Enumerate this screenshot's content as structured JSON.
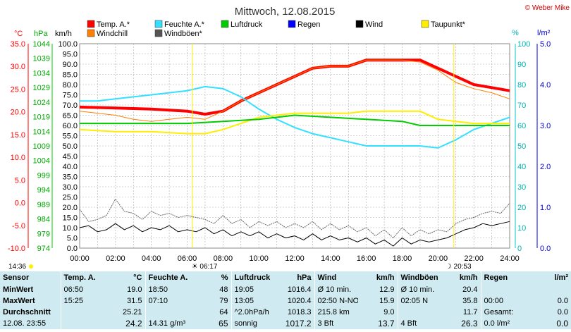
{
  "title": "Mittwoch, 12.08.2015",
  "copyright": "© Weber Mike",
  "units": {
    "celsius": "°C",
    "hpa": "hPa",
    "kmh": "km/h",
    "percent": "%",
    "lm2": "l/m²"
  },
  "legend": [
    {
      "label": "Temp. A.*",
      "color": "#ff0000"
    },
    {
      "label": "Feuchte A.*",
      "color": "#33e0ff"
    },
    {
      "label": "Luftdruck",
      "color": "#00cc00"
    },
    {
      "label": "Regen",
      "color": "#0000ff"
    },
    {
      "label": "Wind",
      "color": "#000000"
    },
    {
      "label": "Taupunkt*",
      "color": "#ffee00"
    },
    {
      "label": "Windchill",
      "color": "#ff7f00"
    },
    {
      "label": "Windböen*",
      "color": "#555555"
    }
  ],
  "chart_data": {
    "type": "line",
    "x_ticks": [
      "00:00",
      "02:00",
      "04:00",
      "06:00",
      "08:00",
      "10:00",
      "12:00",
      "14:00",
      "16:00",
      "18:00",
      "20:00",
      "22:00",
      "24:00"
    ],
    "axes": {
      "temp": {
        "min": -10,
        "max": 35,
        "ticks": [
          "35.0",
          "30.0",
          "25.0",
          "20.0",
          "15.0",
          "10.0",
          "5.0",
          "0.0",
          "-5.0",
          "-10.0"
        ],
        "color": "#ff0000"
      },
      "pressure": {
        "min": 974,
        "max": 1044,
        "ticks": [
          "1044",
          "1039",
          "1034",
          "1029",
          "1024",
          "1019",
          "1014",
          "1009",
          "1004",
          "999",
          "994",
          "989",
          "984",
          "979",
          "974"
        ],
        "color": "#00cc00"
      },
      "wind": {
        "min": 0,
        "max": 100,
        "ticks": [
          "100.0",
          "95.0",
          "90.0",
          "85.0",
          "80.0",
          "75.0",
          "70.0",
          "65.0",
          "60.0",
          "55.0",
          "50.0",
          "45.0",
          "40.0",
          "35.0",
          "30.0",
          "25.0",
          "20.0",
          "15.0",
          "10.0",
          "5.0",
          "0.0"
        ],
        "color": "#000000"
      },
      "humidity": {
        "min": 0,
        "max": 100,
        "ticks": [
          "100",
          "90",
          "80",
          "70",
          "60",
          "50",
          "40",
          "30",
          "20",
          "10",
          "0"
        ],
        "color": "#00c8c8"
      },
      "rain": {
        "min": 0,
        "max": 5,
        "ticks": [
          "5.0",
          "4.0",
          "3.0",
          "2.0",
          "1.0",
          "0.0"
        ],
        "color": "#0000cc"
      }
    },
    "series": [
      {
        "name": "Temp. A.*",
        "axis": "wind",
        "color": "#ff0000",
        "width": 4,
        "points": [
          [
            0,
            69
          ],
          [
            2,
            68.5
          ],
          [
            4,
            68
          ],
          [
            6,
            67
          ],
          [
            7,
            65.5
          ],
          [
            8,
            67
          ],
          [
            9,
            72
          ],
          [
            10,
            76
          ],
          [
            11,
            80
          ],
          [
            12,
            84
          ],
          [
            13,
            88
          ],
          [
            14,
            89
          ],
          [
            15,
            89
          ],
          [
            16,
            92
          ],
          [
            17,
            92
          ],
          [
            18,
            92
          ],
          [
            19,
            92
          ],
          [
            20,
            88
          ],
          [
            21,
            84
          ],
          [
            22,
            80
          ],
          [
            23,
            78.5
          ],
          [
            24,
            77
          ]
        ]
      },
      {
        "name": "Windchill",
        "axis": "wind",
        "color": "#ff7f00",
        "width": 1,
        "points": [
          [
            0,
            67
          ],
          [
            1,
            66
          ],
          [
            2,
            65
          ],
          [
            3,
            63
          ],
          [
            4,
            62
          ],
          [
            5,
            63
          ],
          [
            6,
            64
          ],
          [
            7,
            63
          ],
          [
            8,
            67
          ],
          [
            9,
            72
          ],
          [
            10,
            76
          ],
          [
            11,
            80
          ],
          [
            12,
            84
          ],
          [
            13,
            88
          ],
          [
            14,
            89
          ],
          [
            15,
            89
          ],
          [
            16,
            92
          ],
          [
            17,
            92
          ],
          [
            18,
            92
          ],
          [
            19,
            91
          ],
          [
            20,
            87
          ],
          [
            21,
            81
          ],
          [
            22,
            78
          ],
          [
            23,
            76
          ],
          [
            24,
            73
          ]
        ]
      },
      {
        "name": "Feuchte A.*",
        "axis": "humidity",
        "color": "#33e0ff",
        "width": 2,
        "points": [
          [
            0,
            72
          ],
          [
            1,
            72
          ],
          [
            2,
            73
          ],
          [
            3,
            74
          ],
          [
            4,
            75
          ],
          [
            5,
            76
          ],
          [
            6,
            77
          ],
          [
            7,
            79
          ],
          [
            8,
            78
          ],
          [
            9,
            74
          ],
          [
            10,
            68
          ],
          [
            11,
            63
          ],
          [
            12,
            59
          ],
          [
            13,
            56
          ],
          [
            14,
            54
          ],
          [
            15,
            52
          ],
          [
            16,
            50
          ],
          [
            17,
            50
          ],
          [
            18,
            50
          ],
          [
            19,
            50
          ],
          [
            20,
            49
          ],
          [
            21,
            53
          ],
          [
            22,
            58
          ],
          [
            23,
            61
          ],
          [
            24,
            64
          ]
        ]
      },
      {
        "name": "Taupunkt*",
        "axis": "wind",
        "color": "#ffee00",
        "width": 2,
        "points": [
          [
            0,
            58
          ],
          [
            2,
            57
          ],
          [
            4,
            57
          ],
          [
            6,
            56
          ],
          [
            7,
            56
          ],
          [
            8,
            58
          ],
          [
            9,
            61
          ],
          [
            10,
            64
          ],
          [
            11,
            65
          ],
          [
            12,
            66
          ],
          [
            13,
            66
          ],
          [
            14,
            66
          ],
          [
            15,
            66
          ],
          [
            16,
            67
          ],
          [
            17,
            67
          ],
          [
            18,
            67
          ],
          [
            19,
            67
          ],
          [
            20,
            63
          ],
          [
            21,
            62
          ],
          [
            22,
            61
          ],
          [
            23,
            61
          ],
          [
            24,
            61
          ]
        ]
      },
      {
        "name": "Luftdruck",
        "axis": "wind",
        "color": "#00cc00",
        "width": 2,
        "points": [
          [
            0,
            61
          ],
          [
            2,
            61
          ],
          [
            4,
            61
          ],
          [
            6,
            61
          ],
          [
            8,
            62
          ],
          [
            10,
            63
          ],
          [
            12,
            65
          ],
          [
            14,
            64
          ],
          [
            16,
            63
          ],
          [
            18,
            62
          ],
          [
            19,
            60
          ],
          [
            20,
            60
          ],
          [
            22,
            60
          ],
          [
            24,
            60
          ]
        ]
      },
      {
        "name": "Windböen*",
        "axis": "wind",
        "color": "#666666",
        "width": 1,
        "dashed": true,
        "points": [
          [
            0,
            19
          ],
          [
            0.5,
            13
          ],
          [
            1,
            14
          ],
          [
            1.5,
            16
          ],
          [
            2,
            24
          ],
          [
            2.5,
            18
          ],
          [
            3,
            17
          ],
          [
            3.5,
            14
          ],
          [
            4,
            18
          ],
          [
            4.5,
            16
          ],
          [
            5,
            17
          ],
          [
            5.5,
            15
          ],
          [
            6,
            16
          ],
          [
            6.5,
            15
          ],
          [
            7,
            14
          ],
          [
            7.5,
            12
          ],
          [
            8,
            16
          ],
          [
            8.5,
            12
          ],
          [
            9,
            14
          ],
          [
            9.5,
            10
          ],
          [
            10,
            13
          ],
          [
            10.5,
            11
          ],
          [
            11,
            13
          ],
          [
            11.5,
            10
          ],
          [
            12,
            12
          ],
          [
            12.5,
            10
          ],
          [
            13,
            13
          ],
          [
            13.5,
            9
          ],
          [
            14,
            12
          ],
          [
            14.5,
            9
          ],
          [
            15,
            11
          ],
          [
            15.5,
            8
          ],
          [
            16,
            10
          ],
          [
            16.5,
            6
          ],
          [
            17,
            9
          ],
          [
            17.5,
            5
          ],
          [
            18,
            10
          ],
          [
            18.5,
            6
          ],
          [
            19,
            9
          ],
          [
            19.5,
            7
          ],
          [
            20,
            9
          ],
          [
            20.5,
            8
          ],
          [
            21,
            12
          ],
          [
            21.5,
            14
          ],
          [
            22,
            15
          ],
          [
            22.5,
            17
          ],
          [
            23,
            18
          ],
          [
            23.5,
            17
          ],
          [
            24,
            22
          ]
        ]
      },
      {
        "name": "Wind",
        "axis": "wind",
        "color": "#000000",
        "width": 1,
        "points": [
          [
            0,
            10
          ],
          [
            0.5,
            11
          ],
          [
            1,
            8
          ],
          [
            1.5,
            9
          ],
          [
            2,
            12
          ],
          [
            2.5,
            9
          ],
          [
            3,
            11
          ],
          [
            3.5,
            8
          ],
          [
            4,
            10
          ],
          [
            4.5,
            9
          ],
          [
            5,
            11
          ],
          [
            5.5,
            8
          ],
          [
            6,
            9
          ],
          [
            6.5,
            8
          ],
          [
            7,
            10
          ],
          [
            7.5,
            7
          ],
          [
            8,
            9
          ],
          [
            8.5,
            6
          ],
          [
            9,
            8
          ],
          [
            9.5,
            6
          ],
          [
            10,
            8
          ],
          [
            10.5,
            5
          ],
          [
            11,
            7
          ],
          [
            11.5,
            5
          ],
          [
            12,
            6
          ],
          [
            12.5,
            4
          ],
          [
            13,
            7
          ],
          [
            13.5,
            4
          ],
          [
            14,
            6
          ],
          [
            14.5,
            4
          ],
          [
            15,
            5
          ],
          [
            15.5,
            3
          ],
          [
            16,
            5
          ],
          [
            16.5,
            2
          ],
          [
            17,
            4
          ],
          [
            17.5,
            1
          ],
          [
            18,
            5
          ],
          [
            18.5,
            2
          ],
          [
            19,
            4
          ],
          [
            19.5,
            3
          ],
          [
            20,
            4
          ],
          [
            20.5,
            5
          ],
          [
            21,
            7
          ],
          [
            21.5,
            9
          ],
          [
            22,
            10
          ],
          [
            22.5,
            12
          ],
          [
            23,
            11
          ],
          [
            23.5,
            12
          ],
          [
            24,
            13
          ]
        ]
      }
    ],
    "markers": {
      "sunrise": "06:17",
      "sunset": "20:53",
      "now": "14:36"
    }
  },
  "table": {
    "headers": [
      "Sensor",
      "Temp. A.",
      "°C",
      "Feuchte A.",
      "%",
      "Luftdruck",
      "hPa",
      "Wind",
      "km/h",
      "Windböen",
      "km/h",
      "Regen",
      "l/m²"
    ],
    "rows": [
      [
        "MinWert",
        "06:50",
        "19.0",
        "18:50",
        "48",
        "19:05",
        "1016.4",
        "Ø 10 min.",
        "12.9",
        "Ø 10 min.",
        "20.4",
        "",
        ""
      ],
      [
        "MaxWert",
        "15:25",
        "31.5",
        "07:10",
        "79",
        "13:05",
        "1020.4",
        "02:50 N-NO",
        "15.9",
        "02:05 N",
        "35.8",
        "00:00",
        "0.0"
      ],
      [
        "Durchschnitt",
        "",
        "25.21",
        "",
        "64",
        "^2.0hPa/h",
        "1018.3",
        "215.8 km",
        "9.0",
        "",
        "11.7",
        "Gesamt:",
        "0.0"
      ],
      [
        "12.08. 23:55",
        "",
        "24.2",
        "14.31 g/m³",
        "65",
        "sonnig",
        "1017.2",
        "3 Bft",
        "13.7",
        "4 Bft",
        "26.3",
        "0.0 l/m²",
        "0.0"
      ]
    ]
  }
}
